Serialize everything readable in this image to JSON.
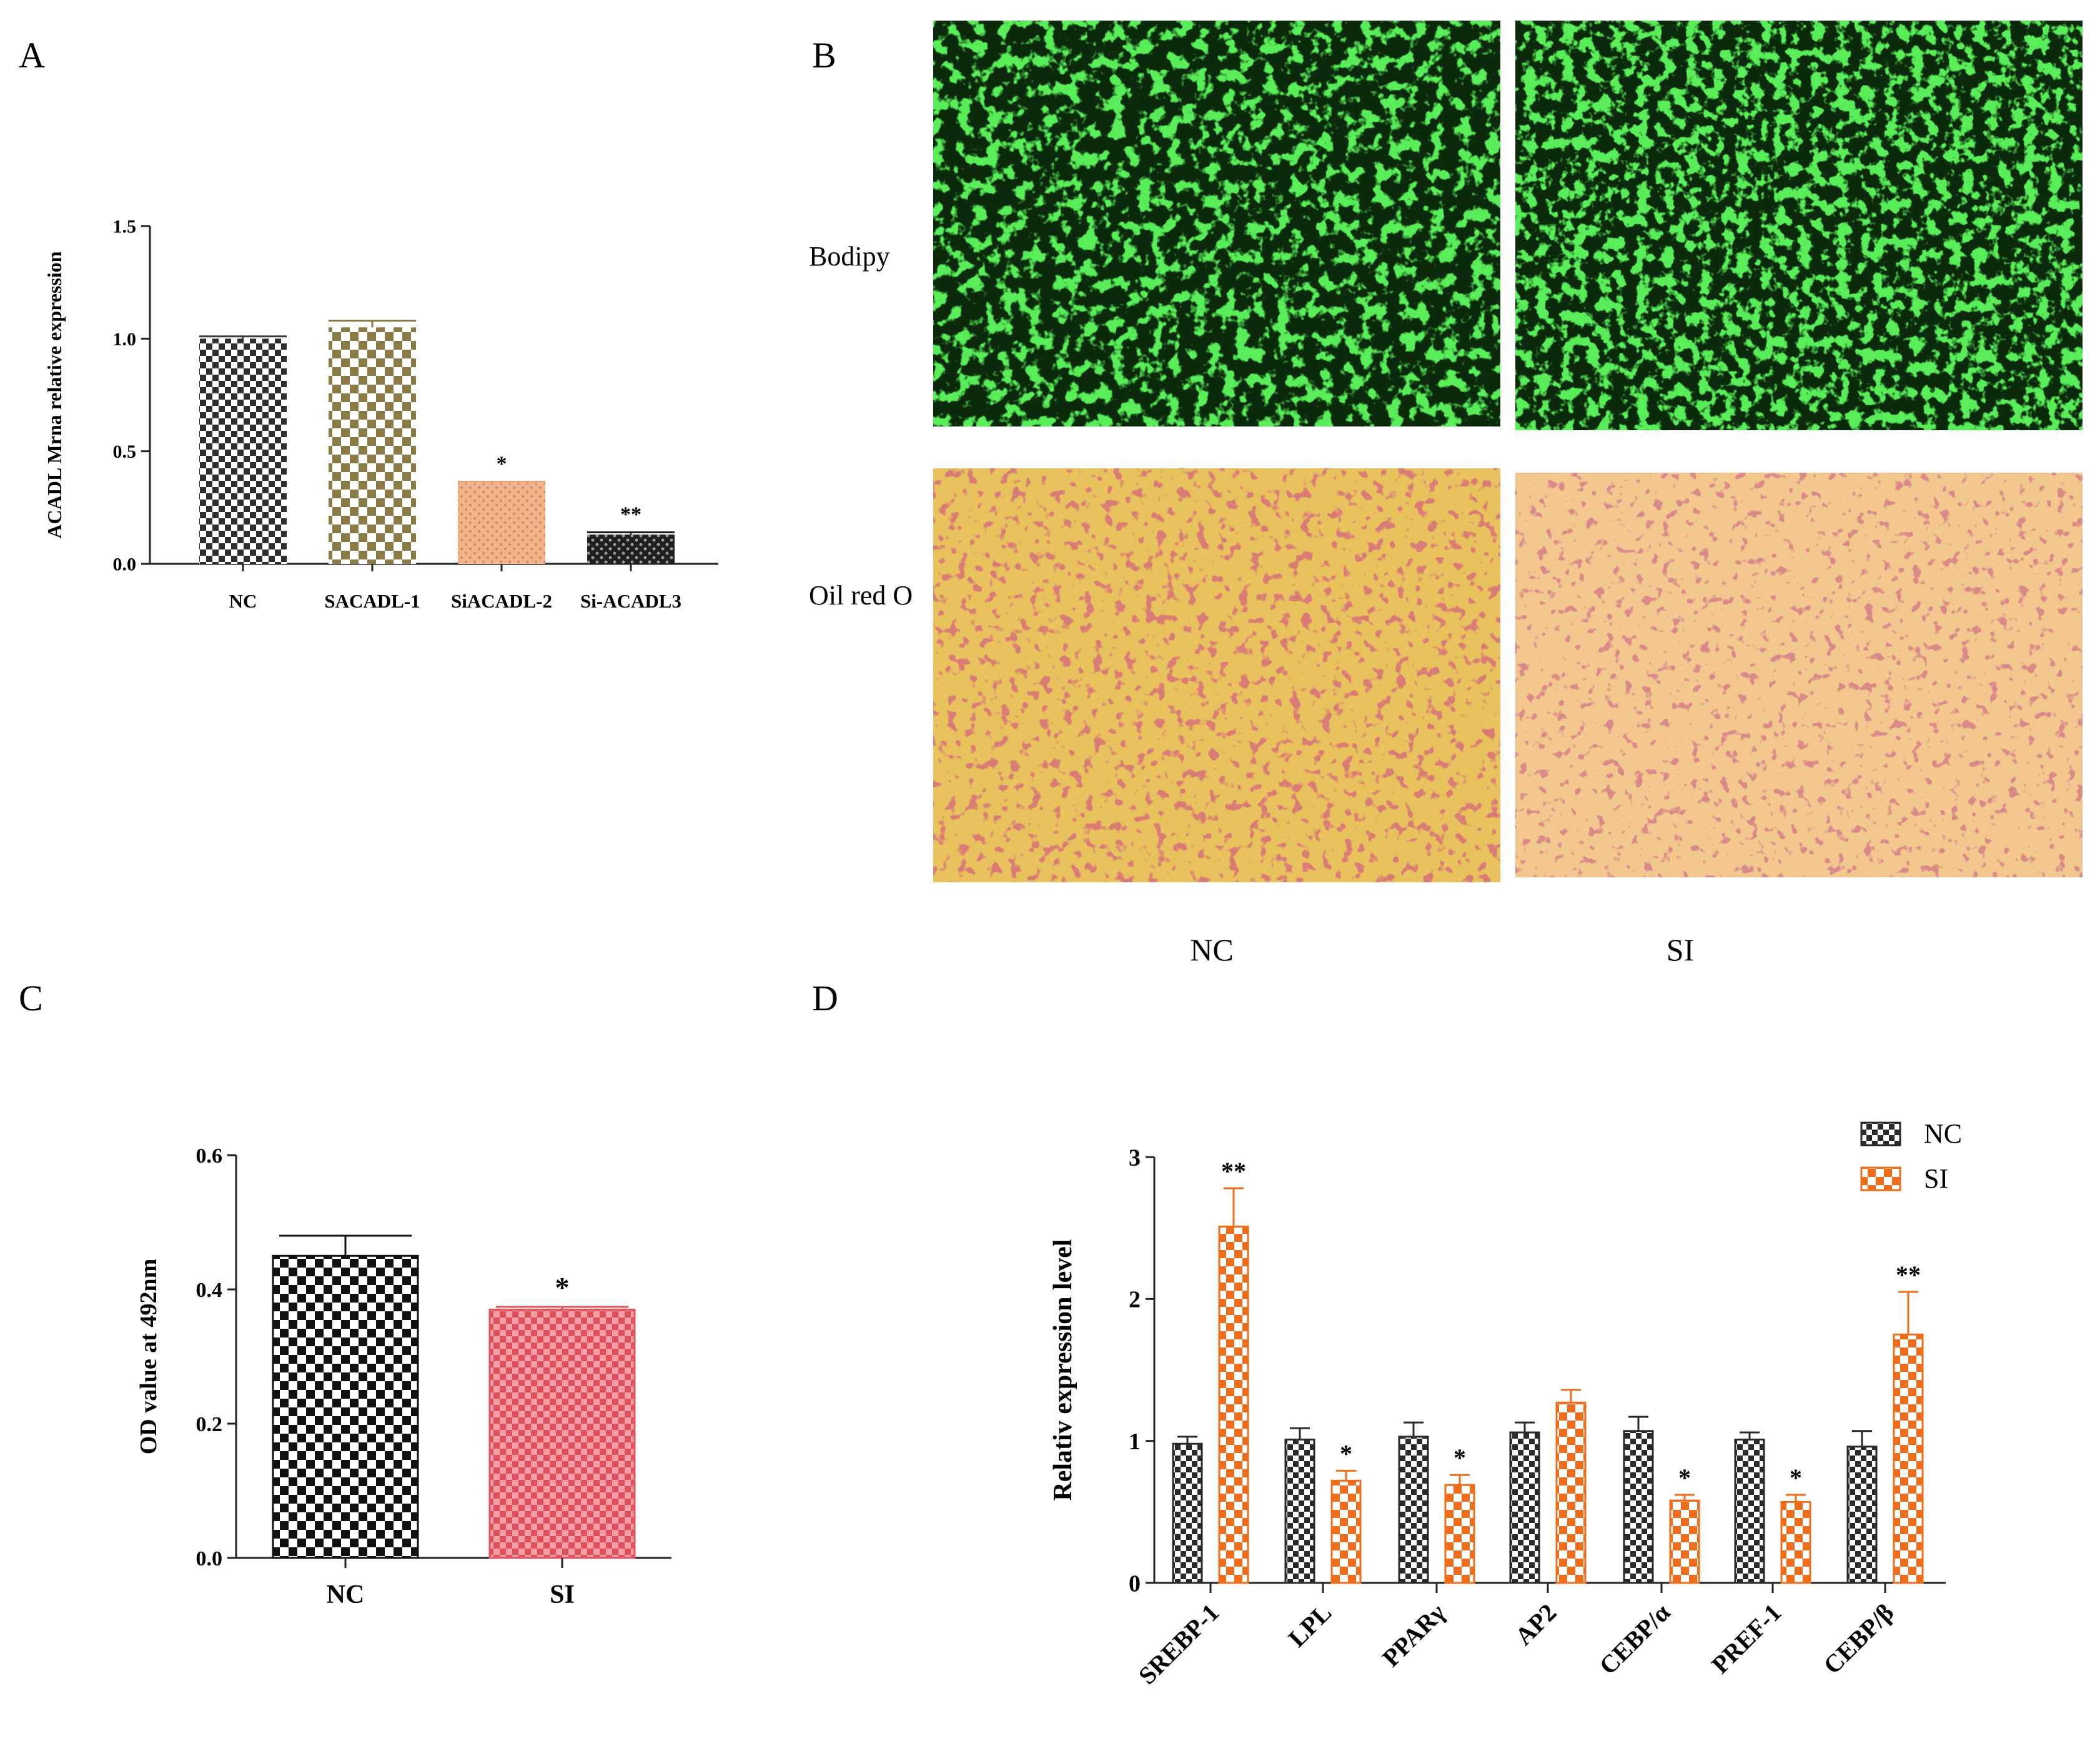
{
  "panels": {
    "a": "A",
    "b": "B",
    "c": "C",
    "d": "D"
  },
  "panel_b": {
    "row_labels": [
      "Bodipy",
      "Oil red O"
    ],
    "col_labels": [
      "NC",
      "SI"
    ],
    "bodipy_color": "#1fd11f",
    "oilred_bg": "#e8c25d",
    "oilred_bg_si": "#f2c88e",
    "oilred_cell": "#b5332d"
  },
  "chart_data": [
    {
      "type": "bar",
      "title": "",
      "xlabel": "",
      "ylabel": "ACADL Mrna relative expression",
      "categories": [
        "NC",
        "SACADL-1",
        "SiACADL-2",
        "Si-ACADL3"
      ],
      "values": [
        1.0,
        1.05,
        0.36,
        0.13
      ],
      "errors": [
        0.01,
        0.03,
        0.005,
        0.01
      ],
      "significance": [
        "",
        "",
        "*",
        "**"
      ],
      "colors": [
        "#3a3a3a",
        "#8a7a45",
        "#e8a27a",
        "#1f1f1f"
      ],
      "ylim": [
        0,
        1.5
      ],
      "yticks": [
        "0.0",
        "0.5",
        "1.0",
        "1.5"
      ],
      "ytick_values": [
        0,
        0.5,
        1.0,
        1.5
      ]
    },
    {
      "type": "bar",
      "title": "",
      "xlabel": "",
      "ylabel": "OD value at 492nm",
      "categories": [
        "NC",
        "SI"
      ],
      "values": [
        0.45,
        0.37
      ],
      "errors": [
        0.03,
        0.004
      ],
      "significance": [
        "",
        "*"
      ],
      "colors": [
        "#111111",
        "#e05560"
      ],
      "ylim": [
        0,
        0.6
      ],
      "yticks": [
        "0.0",
        "0.2",
        "0.4",
        "0.6"
      ],
      "ytick_values": [
        0,
        0.2,
        0.4,
        0.6
      ]
    },
    {
      "type": "bar",
      "title": "",
      "xlabel": "",
      "ylabel": "Relativ expression level",
      "categories": [
        "SREBP-1",
        "LPL",
        "PPARγ",
        "AP2",
        "CEBP/α",
        "PREF-1",
        "CEBP/β"
      ],
      "series": [
        {
          "name": "NC",
          "values": [
            0.98,
            1.01,
            1.03,
            1.06,
            1.07,
            1.01,
            0.96
          ],
          "errors": [
            0.05,
            0.08,
            0.1,
            0.07,
            0.1,
            0.05,
            0.11
          ],
          "significance": [
            "",
            "",
            "",
            "",
            "",
            "",
            ""
          ],
          "color": "#2a2a2a"
        },
        {
          "name": "SI",
          "values": [
            2.51,
            0.72,
            0.69,
            1.27,
            0.58,
            0.57,
            1.75
          ],
          "errors": [
            0.27,
            0.07,
            0.07,
            0.09,
            0.04,
            0.05,
            0.3
          ],
          "significance": [
            "**",
            "*",
            "*",
            "",
            "*",
            "*",
            "**"
          ],
          "color": "#ef6c1a"
        }
      ],
      "ylim": [
        0,
        3
      ],
      "yticks": [
        "0",
        "1",
        "2",
        "3"
      ],
      "ytick_values": [
        0,
        1,
        2,
        3
      ],
      "legend": "top-right"
    }
  ]
}
